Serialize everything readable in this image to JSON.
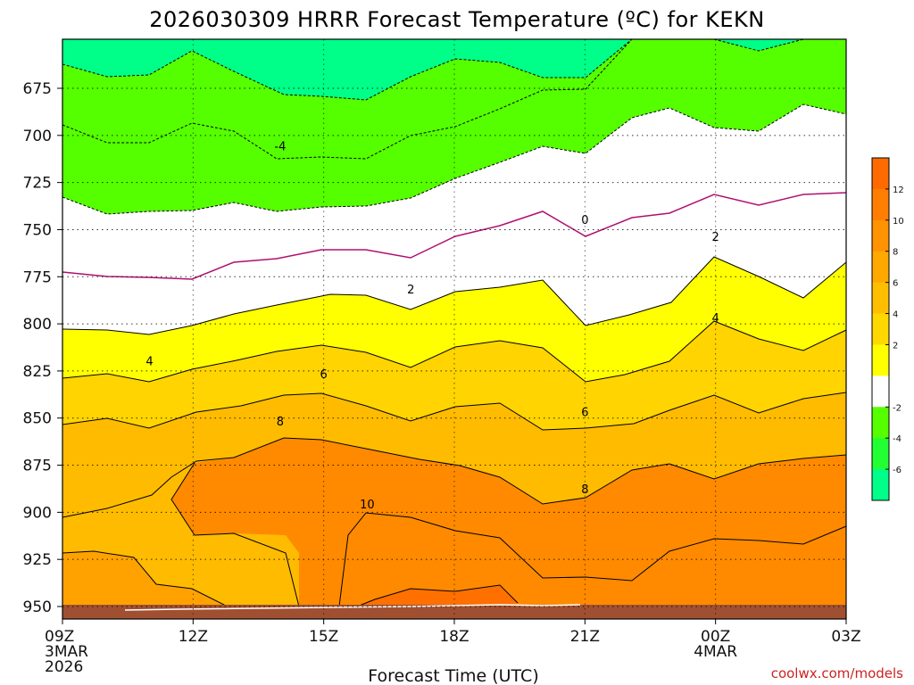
{
  "chart_data": {
    "type": "contour",
    "title": "2026030309 HRRR Forecast Temperature (ºC) for KEKN",
    "xlabel": "Forecast Time (UTC)",
    "ylabel": "",
    "x_ticks": [
      {
        "label": "09Z",
        "sub": [
          "3MAR",
          "2026"
        ]
      },
      {
        "label": "12Z",
        "sub": []
      },
      {
        "label": "15Z",
        "sub": []
      },
      {
        "label": "18Z",
        "sub": []
      },
      {
        "label": "21Z",
        "sub": []
      },
      {
        "label": "00Z",
        "sub": [
          "4MAR"
        ]
      },
      {
        "label": "03Z",
        "sub": []
      }
    ],
    "x_hours": [
      0,
      3,
      6,
      9,
      12,
      15,
      18
    ],
    "y_ticks": [
      675,
      700,
      725,
      750,
      775,
      800,
      825,
      850,
      875,
      900,
      925,
      950
    ],
    "ylim": [
      655,
      955
    ],
    "xlim_hours": [
      0,
      18
    ],
    "colorbar": {
      "labels": [
        "12",
        "10",
        "8",
        "6",
        "4",
        "2",
        "-2",
        "-4",
        "-6"
      ],
      "colors": [
        "#ff7000",
        "#ff8a00",
        "#ffa200",
        "#ffbb00",
        "#ffd400",
        "#ffff00",
        "#ffffff",
        "#55ff00",
        "#00ff88"
      ]
    },
    "contour_labels": [
      {
        "text": "-4",
        "h": 5.0,
        "p": 706
      },
      {
        "text": "0",
        "h": 12.0,
        "p": 745
      },
      {
        "text": "2",
        "h": 15.0,
        "p": 754
      },
      {
        "text": "2",
        "h": 8.0,
        "p": 782
      },
      {
        "text": "4",
        "h": 15.0,
        "p": 797
      },
      {
        "text": "4",
        "h": 2.0,
        "p": 820
      },
      {
        "text": "6",
        "h": 6.0,
        "p": 827
      },
      {
        "text": "6",
        "h": 12.0,
        "p": 847
      },
      {
        "text": "8",
        "h": 5.0,
        "p": 852
      },
      {
        "text": "8",
        "h": 12.0,
        "p": 888
      },
      {
        "text": "10",
        "h": 7.0,
        "p": 896
      }
    ]
  },
  "credit": "coolwx.com/models"
}
